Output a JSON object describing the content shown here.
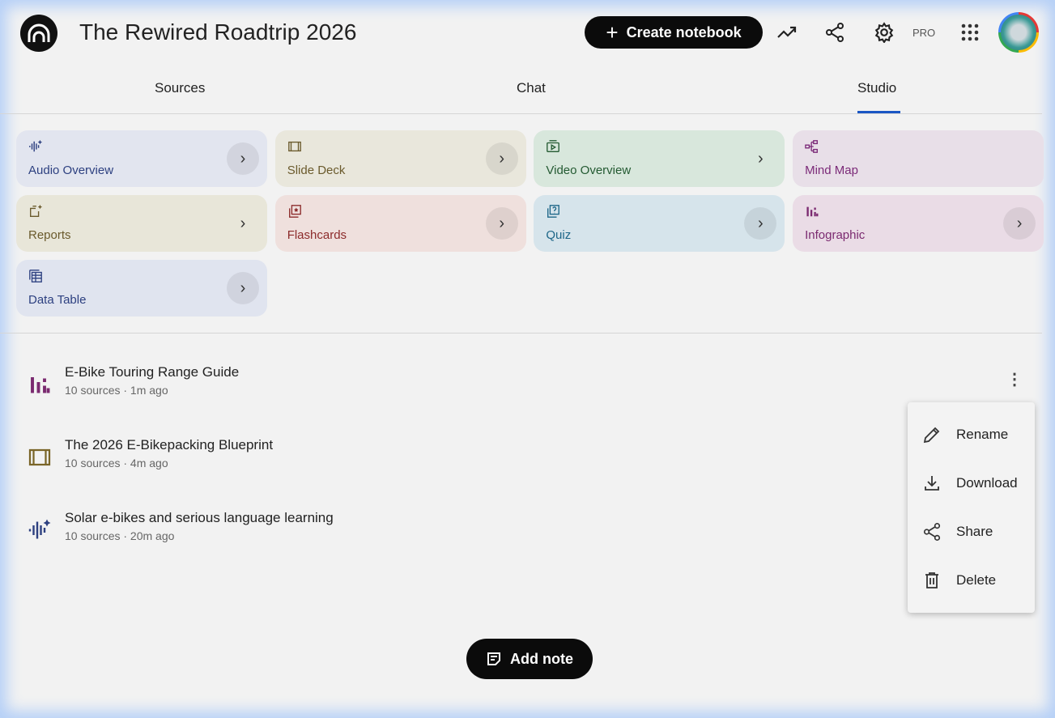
{
  "header": {
    "title": "The Rewired Roadtrip 2026",
    "create_label": "Create notebook",
    "pro_label": "PRO"
  },
  "tabs": [
    {
      "label": "Sources"
    },
    {
      "label": "Chat"
    },
    {
      "label": "Studio",
      "active": true
    }
  ],
  "studio_tools": [
    {
      "label": "Audio Overview",
      "icon": "audio-waveform-icon",
      "bg": "#e2e5ef",
      "color": "#2d4080"
    },
    {
      "label": "Slide Deck",
      "icon": "slides-icon",
      "bg": "#e9e7dc",
      "color": "#6a5a2c"
    },
    {
      "label": "Video Overview",
      "icon": "video-icon",
      "bg": "#d8e7dc",
      "color": "#245a32"
    },
    {
      "label": "Mind Map",
      "icon": "mind-map-icon",
      "bg": "#e8dfe8",
      "color": "#7b2a78"
    },
    {
      "label": "Reports",
      "icon": "reports-icon",
      "bg": "#e8e6d9",
      "color": "#6a5a2c"
    },
    {
      "label": "Flashcards",
      "icon": "flashcards-icon",
      "bg": "#efe0dd",
      "color": "#8c2b2b"
    },
    {
      "label": "Quiz",
      "icon": "quiz-icon",
      "bg": "#d6e4eb",
      "color": "#1d6688"
    },
    {
      "label": "Infographic",
      "icon": "infographic-icon",
      "bg": "#eadce6",
      "color": "#7b2a70"
    },
    {
      "label": "Data Table",
      "icon": "data-table-icon",
      "bg": "#e0e4ef",
      "color": "#2d4080"
    }
  ],
  "notes": [
    {
      "title": "E-Bike Touring Range Guide",
      "meta": "10 sources · 1m ago",
      "icon": "infographic-icon",
      "color": "#7b2a70"
    },
    {
      "title": "The 2026 E-Bikepacking Blueprint",
      "meta": "10 sources · 4m ago",
      "icon": "slides-icon",
      "color": "#7a6528"
    },
    {
      "title": "Solar e-bikes and serious language learning",
      "meta": "10 sources · 20m ago",
      "icon": "audio-waveform-icon",
      "color": "#2d4080"
    }
  ],
  "context_menu": [
    {
      "label": "Rename"
    },
    {
      "label": "Download"
    },
    {
      "label": "Share"
    },
    {
      "label": "Delete"
    }
  ],
  "add_note_label": "Add note"
}
